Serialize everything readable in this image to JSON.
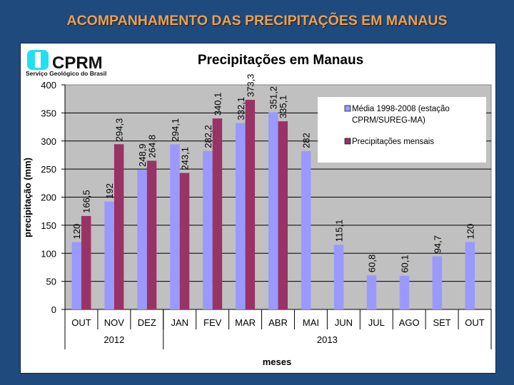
{
  "slide_title": "ACOMPANHAMENTO DAS PRECIPITAÇÕES EM MANAUS",
  "logo": {
    "name": "CPRM",
    "subtitle": "Serviço Geológico do Brasil"
  },
  "colors": {
    "background": "#1f4a7e",
    "title": "#f2a048",
    "plot_bg": "#c0c0c0",
    "media": "#9999ff",
    "mensal": "#993366"
  },
  "chart_data": {
    "type": "bar",
    "title": "Precipitações em Manaus",
    "xlabel": "meses",
    "ylabel": "precipitação (mm)",
    "ylim": [
      0,
      400
    ],
    "yticks": [
      0,
      50,
      100,
      150,
      200,
      250,
      300,
      350,
      400
    ],
    "grid": true,
    "legend": "top-right",
    "categories": [
      "OUT",
      "NOV",
      "DEZ",
      "JAN",
      "FEV",
      "MAR",
      "ABR",
      "MAI",
      "JUN",
      "JUL",
      "AGO",
      "SET",
      "OUT"
    ],
    "groups": [
      {
        "label": "2012",
        "span": 3
      },
      {
        "label": "2013",
        "span": 10
      }
    ],
    "series": [
      {
        "name": "Média 1998-2008 (estação CPRM/SUREG-MA)",
        "values": [
          120,
          192,
          248.9,
          294.1,
          282.2,
          332.1,
          351.2,
          282,
          115.1,
          60.8,
          60.1,
          94.7,
          120
        ],
        "labels": [
          "120",
          "192",
          "248,9",
          "294,1",
          "282,2",
          "332,1",
          "351,2",
          "282",
          "115,1",
          "60,8",
          "60,1",
          "94,7",
          "120"
        ]
      },
      {
        "name": "Precipitações mensais",
        "values": [
          166.5,
          294.3,
          264.8,
          243.1,
          340.1,
          373.3,
          335.1,
          null,
          null,
          null,
          null,
          null,
          null
        ],
        "labels": [
          "166,5",
          "294,3",
          "264,8",
          "243,1",
          "340,1",
          "373,3",
          "335,1",
          null,
          null,
          null,
          null,
          null,
          null
        ]
      }
    ],
    "legend_entries": [
      "Média 1998-2008 (estação",
      "CPRM/SUREG-MA)",
      "Precipitações mensais"
    ]
  }
}
